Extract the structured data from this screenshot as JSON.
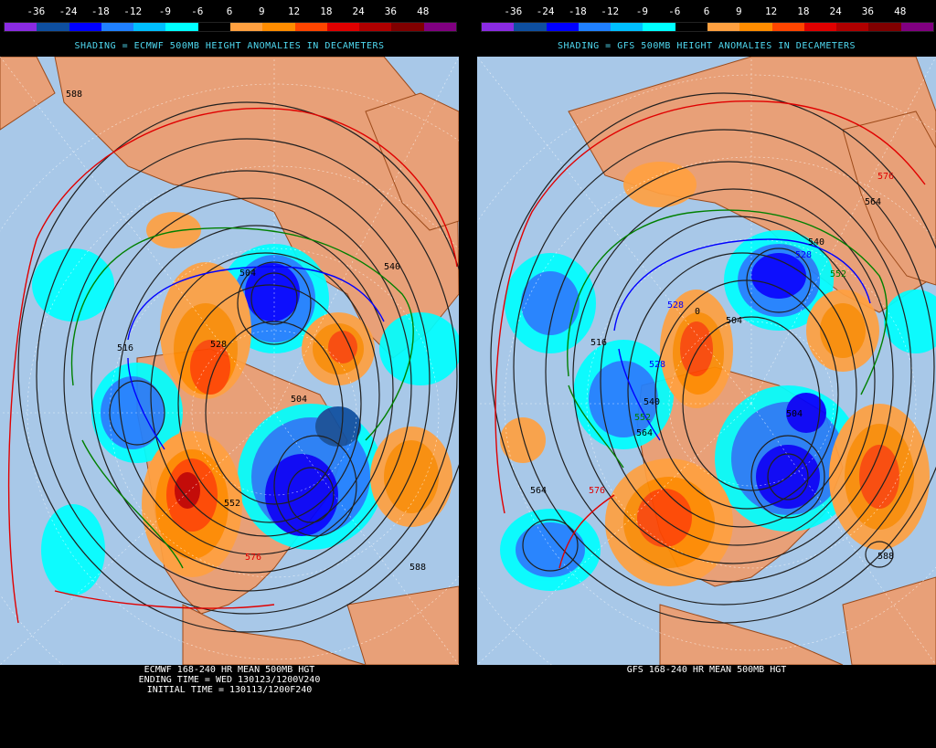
{
  "scale": {
    "labels": [
      "-36",
      "-24",
      "-18",
      "-12",
      "-9",
      "-6",
      "6",
      "9",
      "12",
      "18",
      "24",
      "36",
      "48"
    ],
    "colors": [
      "#8a2be2",
      "#0e4fa0",
      "#0000ff",
      "#2080ff",
      "#00bfff",
      "#00ffff",
      "#000000",
      "#ffa040",
      "#ff8c00",
      "#ff4500",
      "#e00000",
      "#b00000",
      "#800000",
      "#800080"
    ]
  },
  "left": {
    "shading_title": "SHADING = ECMWF 500MB HEIGHT ANOMALIES IN DECAMETERS",
    "footer": {
      "line1": "ECMWF 168-240 HR MEAN 500MB HGT",
      "line2": "ENDING TIME = WED 130123/1200V240",
      "line3": "INITIAL TIME = 130113/1200F240"
    },
    "contour_labels": [
      "588",
      "516",
      "528",
      "504",
      "540",
      "552",
      "504",
      "576",
      "588"
    ]
  },
  "right": {
    "shading_title": "SHADING = GFS 500MB HEIGHT ANOMALIES IN DECAMETERS",
    "footer": {
      "line1": "GFS 168-240 HR MEAN 500MB HGT"
    },
    "contour_labels": [
      "576",
      "564",
      "540",
      "528",
      "552",
      "528",
      "504",
      "516",
      "528",
      "540",
      "552",
      "564",
      "504",
      "576",
      "588",
      "0"
    ]
  },
  "colors": {
    "ocean": "#a8c8e8",
    "land": "#e8a078",
    "coast": "#9c4a1a",
    "contour": "#202020",
    "contour_576": "#e00000",
    "contour_552": "#008000",
    "contour_528": "#0000ff",
    "title_text": "#4fd8f0"
  }
}
